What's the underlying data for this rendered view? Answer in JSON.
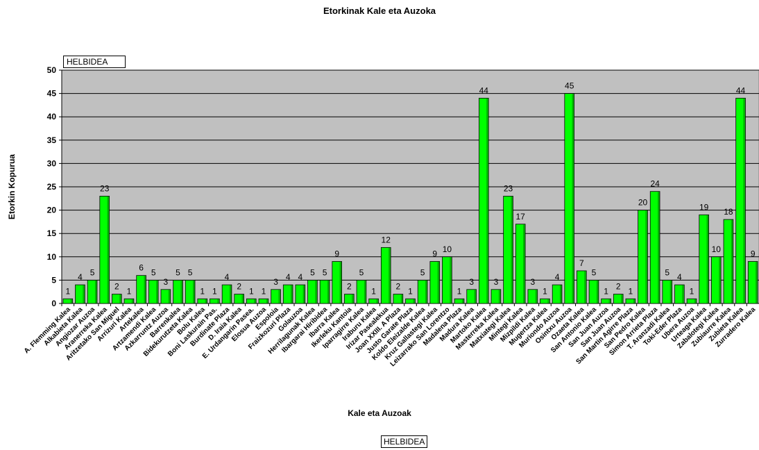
{
  "chart_data": {
    "type": "bar",
    "title": "Etorkinak Kale eta Auzoka",
    "xlabel": "Kale eta Auzoak",
    "ylabel": "Etorkin Kopurua",
    "ylim": [
      0,
      50
    ],
    "yticks": [
      0,
      5,
      10,
      15,
      20,
      25,
      30,
      35,
      40,
      45,
      50
    ],
    "grid": true,
    "field_button_top": "HELBIDEA",
    "field_button_bottom": "HELBIDEA",
    "bar_color": "#00ff00",
    "plot_background": "#c0c0c0",
    "categories": [
      "A. Flemming Kalea",
      "Alkabieta Kalea",
      "Angiozar Auzoa",
      "Aranerreka Kalea",
      "Aritzetako San Miguel",
      "Arrizuri Kalea",
      "Artekalea",
      "Artzamendi Kalea",
      "Azkarruntz Auzoa",
      "Barrenkalea",
      "Bidekurutzeta Kalea",
      "Bolu Kalea",
      "Boni Laskurain Pas.",
      "Burdinate Plaza",
      "D. Iraia Kalea",
      "E. Urdangarin Pasea.",
      "Elosua Auzoa",
      "Espoloia",
      "Fraizkozuri Plaza",
      "Golauzoa",
      "Herrilagunak Kalea",
      "Ibargarai Hiribidea",
      "Ibarra Kalea",
      "Ikerleku Kantoia",
      "Iparragirre Kalea",
      "Iraburu Kalea",
      "Irizar Pasealekua",
      "Joan XXIII. A Plaza",
      "Justo Garate Plaza",
      "Koldo Eleizalde Kalea",
      "Kruz Gallastegi Kalea",
      "Leizarrako San Lorentzo",
      "Madalena Plaza",
      "Madura Kalea",
      "Martoko Kalea",
      "Masterreka Kalea",
      "Matxiategi Kalea",
      "Mintegi Kalea",
      "Mizpildi Kalea",
      "Mugertza Kalea",
      "Muriondo Auzoa",
      "Osintxu Auzoa",
      "Ozaeta Kalea",
      "San Antonio Kalea",
      "San Juan Auzoa",
      "San Juan Auzoa",
      "San Martin Agirre Plaza",
      "San Pedro Kalea",
      "Simon Arrieta Plaza",
      "T. Aranzadi Kalea",
      "Toki-Eder Plaza",
      "Ubera Auzoa",
      "Urteaga Kalea",
      "Zabalotegi Kalea",
      "Zubiaurre Kalea",
      "Zubieta Kalea",
      "Zurradero Kalea"
    ],
    "values": [
      1,
      4,
      5,
      23,
      2,
      1,
      6,
      5,
      3,
      5,
      5,
      1,
      1,
      4,
      2,
      1,
      1,
      3,
      4,
      4,
      5,
      5,
      9,
      2,
      5,
      1,
      12,
      2,
      1,
      5,
      9,
      10,
      1,
      3,
      44,
      3,
      23,
      17,
      3,
      1,
      4,
      45,
      7,
      5,
      1,
      2,
      1,
      20,
      24,
      5,
      4,
      1,
      19,
      10,
      18,
      44,
      9
    ]
  }
}
